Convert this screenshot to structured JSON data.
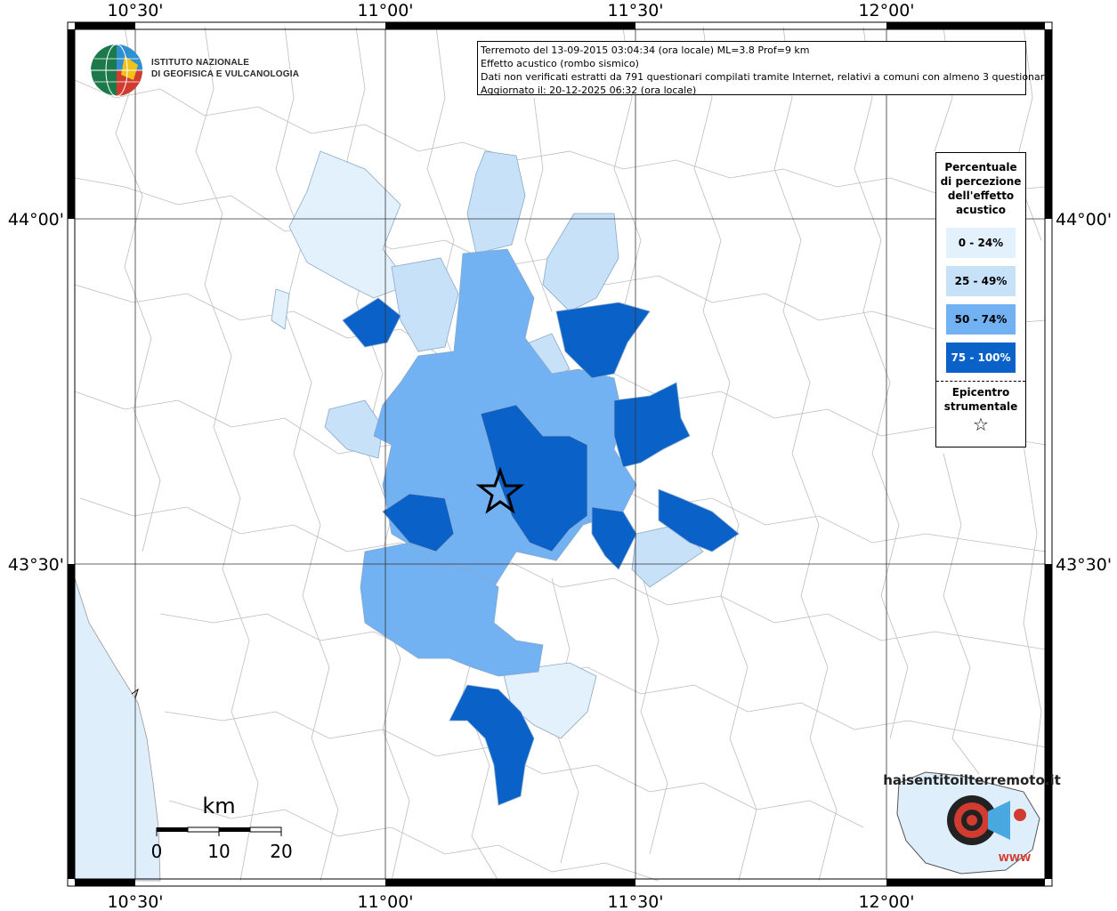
{
  "map": {
    "info_lines": [
      "Terremoto del 13-09-2015 03:04:34 (ora locale) ML=3.8 Prof=9 km",
      "Effetto acustico (rombo sismico)",
      "Dati non verificati estratti da 791 questionari compilati tramite Internet, relativi a comuni con almeno 3 questionari.",
      "Aggiornato il: 20-12-2025 06:32 (ora locale)"
    ],
    "lon_labels": [
      "10°30'",
      "11°00'",
      "11°30'",
      "12°00'"
    ],
    "lat_labels": [
      "44°00'",
      "43°30'"
    ],
    "legend": {
      "title": "Percentuale di percezione dell'effetto acustico",
      "items": [
        {
          "label": "0 - 24%",
          "color": "#e3f1fc"
        },
        {
          "label": "25 - 49%",
          "color": "#c7e1f8"
        },
        {
          "label": "50 - 74%",
          "color": "#72b2f3"
        },
        {
          "label": "75 - 100%",
          "color": "#0a62c9"
        }
      ],
      "epicenter_label": "Epicentro strumentale",
      "epicenter_symbol": "☆"
    },
    "scale": {
      "unit": "km",
      "ticks": [
        "0",
        "10",
        "20"
      ]
    },
    "ingv": {
      "line1": "ISTITUTO NAZIONALE",
      "line2": "DI GEOFISICA E VULCANOLOGIA"
    },
    "hsit": {
      "text": "haisentitoilterremoto.it",
      "www": "WWW"
    },
    "colors": {
      "sea": "#dfeefb",
      "border": "#b0b0b0",
      "grid": "#333333"
    }
  }
}
